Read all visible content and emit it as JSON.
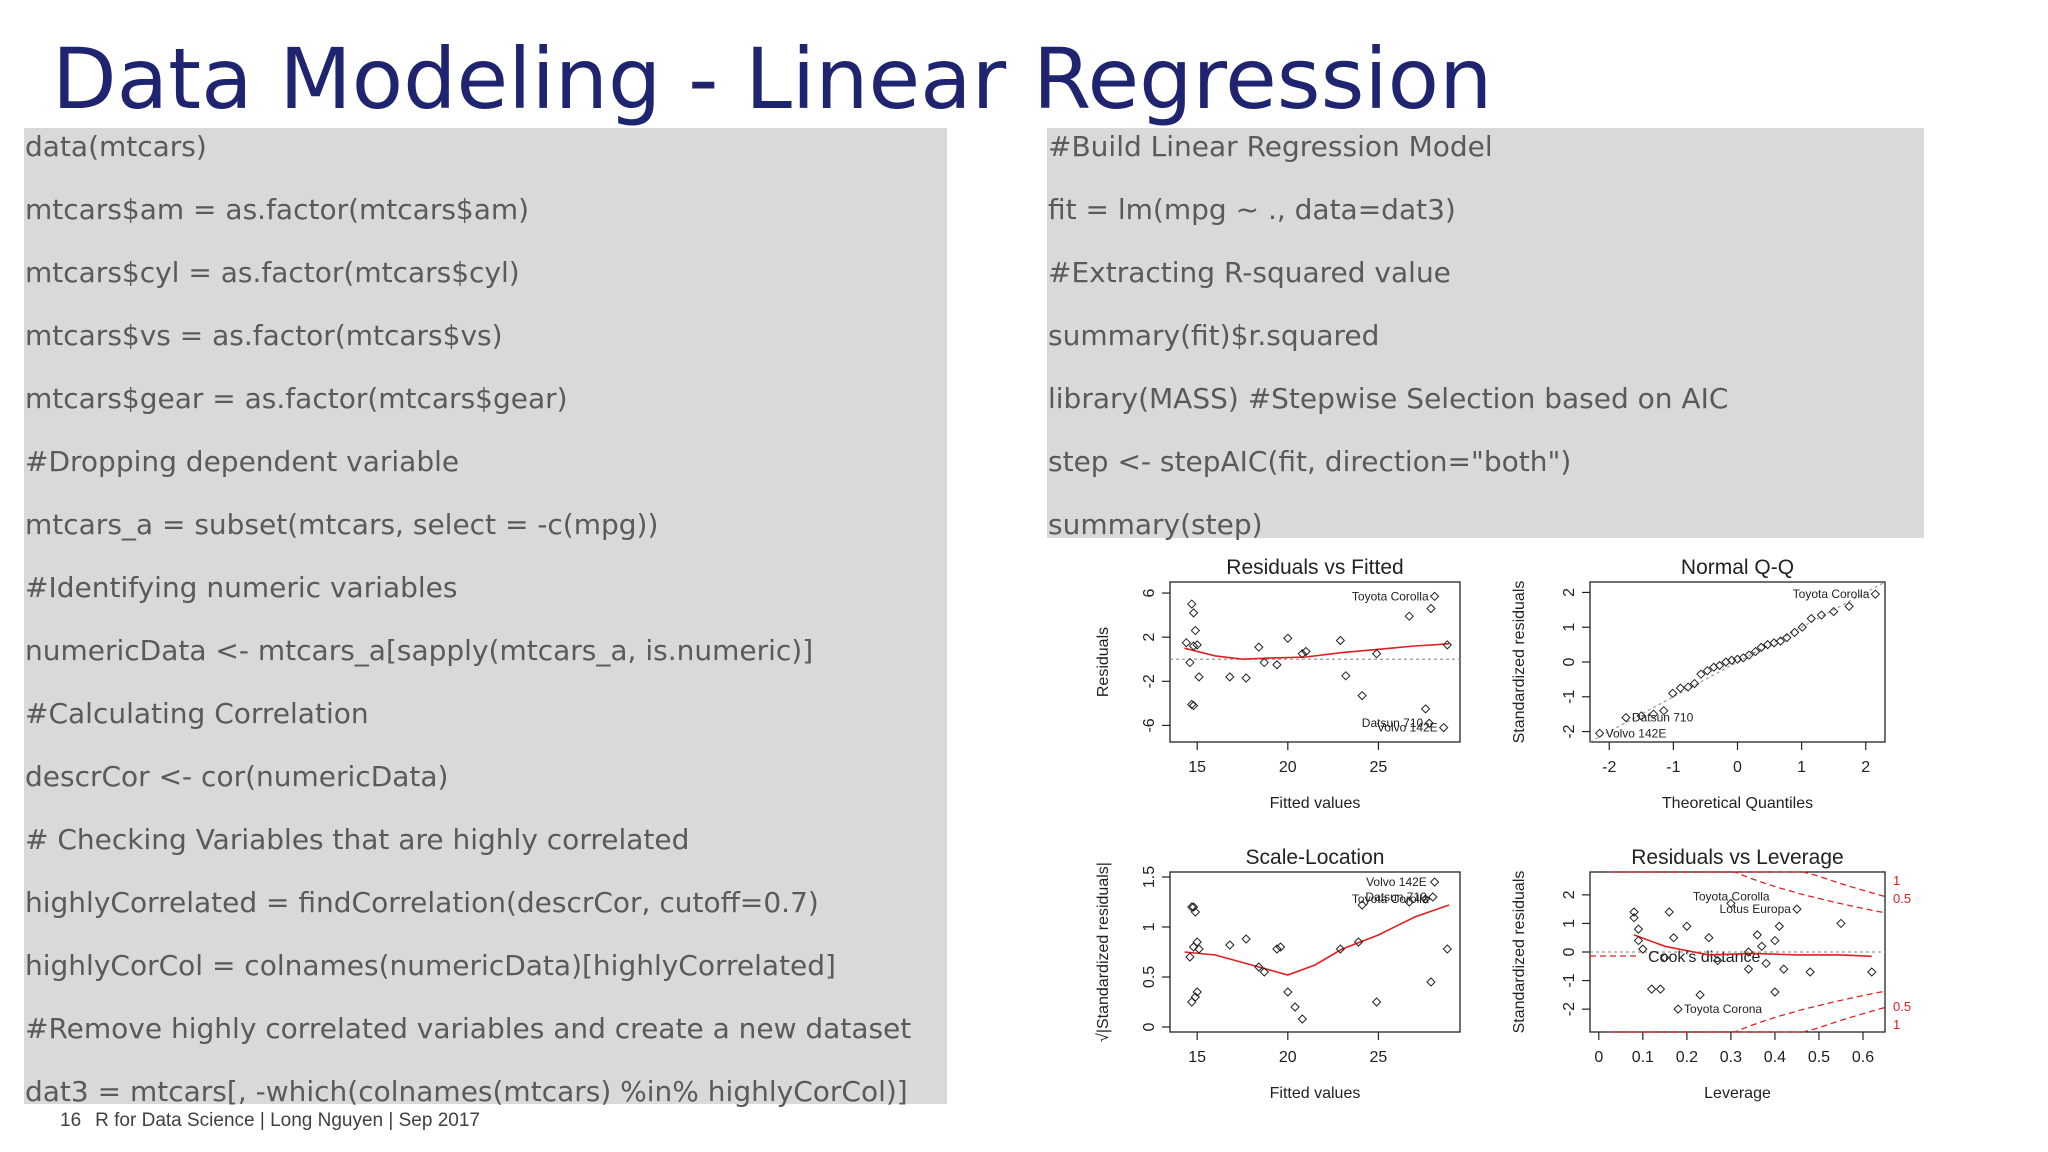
{
  "slide": {
    "title": "Data Modeling - Linear Regression",
    "page_number": "16",
    "footer": "R for Data Science | Long Nguyen | Sep 2017"
  },
  "code_left": [
    "data(mtcars)",
    "mtcars$am   = as.factor(mtcars$am)",
    "mtcars$cyl  = as.factor(mtcars$cyl)",
    "mtcars$vs   = as.factor(mtcars$vs)",
    "mtcars$gear = as.factor(mtcars$gear)",
    "#Dropping dependent variable",
    "mtcars_a = subset(mtcars, select = -c(mpg))",
    "#Identifying numeric variables",
    "numericData <- mtcars_a[sapply(mtcars_a, is.numeric)]",
    "#Calculating Correlation",
    "descrCor <- cor(numericData)",
    "# Checking Variables that are highly correlated",
    "highlyCorrelated = findCorrelation(descrCor, cutoff=0.7)",
    "highlyCorCol = colnames(numericData)[highlyCorrelated]",
    "#Remove highly correlated variables and create a new dataset",
    "dat3 = mtcars[, -which(colnames(mtcars) %in% highlyCorCol)]"
  ],
  "code_right": [
    "#Build Linear Regression Model",
    "fit = lm(mpg ~ ., data=dat3)",
    "#Extracting R-squared value",
    "summary(fit)$r.squared",
    "library(MASS) #Stepwise Selection based on AIC",
    "step <- stepAIC(fit, direction=\"both\")",
    "summary(step)"
  ],
  "colors": {
    "title": "#1f2470",
    "code_bg": "#d9d9dc",
    "code_text": "#5a5a5a",
    "smooth_line": "#e02020",
    "reference_line": "#999999"
  },
  "chart_data": [
    {
      "type": "scatter",
      "title": "Residuals vs Fitted",
      "xlabel": "Fitted values",
      "ylabel": "Residuals",
      "xlim": [
        13.5,
        29.5
      ],
      "ylim": [
        -7.5,
        7
      ],
      "xticks": [
        15,
        20,
        25
      ],
      "yticks": [
        -6,
        -2,
        2,
        6
      ],
      "reference_line": {
        "y": 0
      },
      "points": [
        [
          14.7,
          5.0
        ],
        [
          14.8,
          4.2
        ],
        [
          14.9,
          2.6
        ],
        [
          15.0,
          1.3
        ],
        [
          14.8,
          1.2
        ],
        [
          14.6,
          -0.3
        ],
        [
          15.1,
          -1.6
        ],
        [
          14.7,
          -4.1
        ],
        [
          14.8,
          -4.2
        ],
        [
          14.4,
          1.5
        ],
        [
          16.8,
          -1.6
        ],
        [
          17.7,
          -1.7
        ],
        [
          18.4,
          1.1
        ],
        [
          18.7,
          -0.3
        ],
        [
          19.4,
          -0.5
        ],
        [
          20.0,
          1.9
        ],
        [
          20.8,
          0.5
        ],
        [
          21.0,
          0.7
        ],
        [
          22.9,
          1.7
        ],
        [
          23.2,
          -1.5
        ],
        [
          24.1,
          -3.3
        ],
        [
          24.9,
          0.5
        ],
        [
          26.7,
          3.9
        ],
        [
          27.6,
          -4.5
        ],
        [
          28.1,
          5.7
        ],
        [
          27.9,
          4.6
        ],
        [
          28.8,
          1.3
        ],
        [
          27.8,
          -5.8
        ],
        [
          28.6,
          -6.2
        ]
      ],
      "smooth": [
        [
          14.3,
          1.0
        ],
        [
          16,
          0.3
        ],
        [
          17.5,
          0
        ],
        [
          19,
          0.1
        ],
        [
          21,
          0.2
        ],
        [
          23,
          0.6
        ],
        [
          25,
          0.9
        ],
        [
          27,
          1.2
        ],
        [
          28.9,
          1.4
        ]
      ],
      "labels": [
        {
          "text": "Toyota Corolla",
          "x": 28.1,
          "y": 5.7
        },
        {
          "text": "Datsun 710",
          "x": 27.8,
          "y": -5.8
        },
        {
          "text": "Volvo 142E",
          "x": 28.6,
          "y": -6.2
        }
      ]
    },
    {
      "type": "scatter",
      "title": "Normal Q-Q",
      "xlabel": "Theoretical Quantiles",
      "ylabel": "Standardized residuals",
      "xlim": [
        -2.3,
        2.3
      ],
      "ylim": [
        -2.3,
        2.3
      ],
      "xticks": [
        -2,
        -1,
        0,
        1,
        2
      ],
      "yticks": [
        -2,
        -1,
        0,
        1,
        2
      ],
      "reference_line": {
        "slope": 1,
        "intercept": 0
      },
      "points": [
        [
          -2.15,
          -2.05
        ],
        [
          -1.74,
          -1.6
        ],
        [
          -1.5,
          -1.55
        ],
        [
          -1.31,
          -1.5
        ],
        [
          -1.15,
          -1.4
        ],
        [
          -1.01,
          -0.9
        ],
        [
          -0.89,
          -0.75
        ],
        [
          -0.77,
          -0.72
        ],
        [
          -0.67,
          -0.62
        ],
        [
          -0.57,
          -0.35
        ],
        [
          -0.47,
          -0.25
        ],
        [
          -0.37,
          -0.15
        ],
        [
          -0.28,
          -0.1
        ],
        [
          -0.18,
          0.0
        ],
        [
          -0.09,
          0.05
        ],
        [
          0.0,
          0.08
        ],
        [
          0.09,
          0.12
        ],
        [
          0.18,
          0.2
        ],
        [
          0.28,
          0.3
        ],
        [
          0.37,
          0.42
        ],
        [
          0.47,
          0.5
        ],
        [
          0.57,
          0.55
        ],
        [
          0.67,
          0.6
        ],
        [
          0.77,
          0.7
        ],
        [
          0.89,
          0.85
        ],
        [
          1.01,
          1.0
        ],
        [
          1.15,
          1.25
        ],
        [
          1.31,
          1.35
        ],
        [
          1.5,
          1.45
        ],
        [
          1.74,
          1.6
        ],
        [
          2.15,
          1.95
        ]
      ],
      "labels": [
        {
          "text": "Toyota Corolla",
          "x": 2.15,
          "y": 1.95
        },
        {
          "text": "Datsun 710",
          "x": -1.74,
          "y": -1.6
        },
        {
          "text": "Volvo 142E",
          "x": -2.15,
          "y": -2.05
        }
      ]
    },
    {
      "type": "scatter",
      "title": "Scale-Location",
      "xlabel": "Fitted values",
      "ylabel": "√|Standardized residuals|",
      "xlim": [
        13.5,
        29.5
      ],
      "ylim": [
        -0.05,
        1.55
      ],
      "xticks": [
        15,
        20,
        25
      ],
      "yticks": [
        0.0,
        0.5,
        1.0,
        1.5
      ],
      "points": [
        [
          14.8,
          1.2
        ],
        [
          14.9,
          1.15
        ],
        [
          14.7,
          1.2
        ],
        [
          15.0,
          0.85
        ],
        [
          14.8,
          0.8
        ],
        [
          14.6,
          0.7
        ],
        [
          15.1,
          0.78
        ],
        [
          14.9,
          0.3
        ],
        [
          15.0,
          0.35
        ],
        [
          14.7,
          0.25
        ],
        [
          16.8,
          0.82
        ],
        [
          17.7,
          0.88
        ],
        [
          18.4,
          0.6
        ],
        [
          18.7,
          0.55
        ],
        [
          19.4,
          0.78
        ],
        [
          19.6,
          0.8
        ],
        [
          20.0,
          0.35
        ],
        [
          20.4,
          0.2
        ],
        [
          20.8,
          0.08
        ],
        [
          22.9,
          0.78
        ],
        [
          23.9,
          0.85
        ],
        [
          24.1,
          1.22
        ],
        [
          24.9,
          0.25
        ],
        [
          26.7,
          1.25
        ],
        [
          27.6,
          1.28
        ],
        [
          28.1,
          1.45
        ],
        [
          27.9,
          0.45
        ],
        [
          28.8,
          0.78
        ],
        [
          28.0,
          1.3
        ]
      ],
      "smooth": [
        [
          14.3,
          0.75
        ],
        [
          16,
          0.72
        ],
        [
          18,
          0.62
        ],
        [
          20,
          0.52
        ],
        [
          21.5,
          0.62
        ],
        [
          23,
          0.78
        ],
        [
          25,
          0.92
        ],
        [
          27,
          1.1
        ],
        [
          28.9,
          1.22
        ]
      ],
      "labels": [
        {
          "text": "Toyota Corolla",
          "x": 28.1,
          "y": 1.28
        },
        {
          "text": "Volvo 142E",
          "x": 28.0,
          "y": 1.45
        },
        {
          "text": "Datsun 710",
          "x": 28.0,
          "y": 1.3
        }
      ]
    },
    {
      "type": "scatter",
      "title": "Residuals vs Leverage",
      "xlabel": "Leverage",
      "ylabel": "Standardized residuals",
      "xlim": [
        -0.02,
        0.65
      ],
      "ylim": [
        -2.8,
        2.8
      ],
      "xticks": [
        0.0,
        0.1,
        0.2,
        0.3,
        0.4,
        0.5,
        0.6
      ],
      "yticks": [
        -2,
        -1,
        0,
        1,
        2
      ],
      "reference_line": {
        "y": 0
      },
      "cooks_distance_levels": [
        "1",
        "0.5",
        "0.5",
        "1"
      ],
      "cooks_label": "Cook's distance",
      "points": [
        [
          0.08,
          1.4
        ],
        [
          0.08,
          1.2
        ],
        [
          0.09,
          0.8
        ],
        [
          0.1,
          0.1
        ],
        [
          0.09,
          0.4
        ],
        [
          0.12,
          -1.3
        ],
        [
          0.14,
          -1.3
        ],
        [
          0.16,
          1.4
        ],
        [
          0.17,
          0.5
        ],
        [
          0.15,
          -0.2
        ],
        [
          0.2,
          0.9
        ],
        [
          0.23,
          -1.5
        ],
        [
          0.25,
          0.5
        ],
        [
          0.27,
          -0.3
        ],
        [
          0.3,
          1.7
        ],
        [
          0.34,
          -0.6
        ],
        [
          0.36,
          0.6
        ],
        [
          0.37,
          0.2
        ],
        [
          0.38,
          -0.4
        ],
        [
          0.4,
          0.4
        ],
        [
          0.4,
          -1.4
        ],
        [
          0.41,
          0.9
        ],
        [
          0.42,
          -0.6
        ],
        [
          0.45,
          1.5
        ],
        [
          0.48,
          -0.7
        ],
        [
          0.55,
          1.0
        ],
        [
          0.62,
          -0.7
        ],
        [
          0.18,
          -2.0
        ],
        [
          0.34,
          0.0
        ]
      ],
      "smooth": [
        [
          0.08,
          0.6
        ],
        [
          0.15,
          0.2
        ],
        [
          0.25,
          -0.1
        ],
        [
          0.35,
          -0.05
        ],
        [
          0.45,
          -0.1
        ],
        [
          0.55,
          -0.1
        ],
        [
          0.62,
          -0.15
        ]
      ],
      "labels": [
        {
          "text": "Toyota Corolla",
          "x": 0.2,
          "y": 1.95
        },
        {
          "text": "Lotus Europa",
          "x": 0.45,
          "y": 1.5
        },
        {
          "text": "Toyota Corona",
          "x": 0.18,
          "y": -2.0
        }
      ]
    }
  ]
}
